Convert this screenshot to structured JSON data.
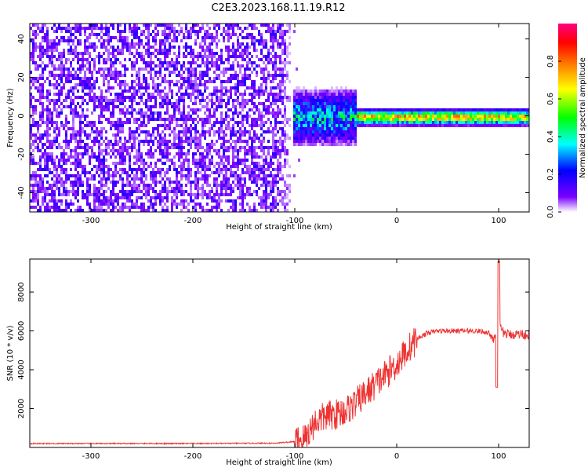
{
  "title": "C2E3.2023.168.11.19.R12",
  "colors": {
    "snr_line": "#ee3333",
    "colormap": [
      "#ffffff",
      "#7a00ff",
      "#0000ff",
      "#00ffff",
      "#00ff00",
      "#ffff00",
      "#ff7f00",
      "#ff0000",
      "#ff0080"
    ]
  },
  "chart_data": [
    {
      "type": "heatmap",
      "name": "spectrogram",
      "xlabel": "Height of straight line (km)",
      "ylabel": "Frequency (Hz)",
      "xlim": [
        -360,
        130
      ],
      "ylim": [
        -50,
        48
      ],
      "xticks": [
        -300,
        -200,
        -100,
        0,
        100
      ],
      "yticks": [
        -40,
        -20,
        0,
        20,
        40
      ],
      "colorbar": {
        "label": "Normalized spectral amplitude",
        "range": [
          0,
          1
        ],
        "ticks": [
          "0.0",
          "0.2",
          "0.4",
          "0.6",
          "0.8"
        ]
      },
      "regions": [
        {
          "description_x": [
            -360,
            -103
          ],
          "amplitude": 0.1,
          "pattern": "broadband noise across all frequencies"
        },
        {
          "description_x": [
            -103,
            -40
          ],
          "amplitude": 0.35,
          "center_freq": 0,
          "half_width_hz": 10
        },
        {
          "description_x": [
            -40,
            130
          ],
          "amplitude": 0.85,
          "center_freq": 0,
          "half_width_hz": 3
        }
      ]
    },
    {
      "type": "line",
      "name": "snr",
      "xlabel": "Height of straight line (km)",
      "ylabel": "SNR (10 * v/v)",
      "xlim": [
        -360,
        130
      ],
      "ylim": [
        0,
        9700
      ],
      "xticks": [
        -300,
        -200,
        -100,
        0,
        100
      ],
      "yticks": [
        2000,
        4000,
        6000,
        8000
      ],
      "series": [
        {
          "x": [
            -360,
            -300,
            -200,
            -120,
            -100,
            -90,
            -80,
            -70,
            -60,
            -50,
            -40,
            -30,
            -20,
            -10,
            0,
            10,
            20,
            30,
            40,
            60,
            80,
            90,
            95,
            100,
            105,
            110,
            120,
            130
          ],
          "values": [
            200,
            200,
            200,
            220,
            300,
            500,
            1300,
            1600,
            1700,
            1900,
            2300,
            2800,
            3300,
            3800,
            4300,
            5000,
            5600,
            5900,
            6000,
            6000,
            6000,
            5900,
            5600,
            6300,
            5900,
            5800,
            5850,
            5800
          ]
        }
      ]
    }
  ]
}
